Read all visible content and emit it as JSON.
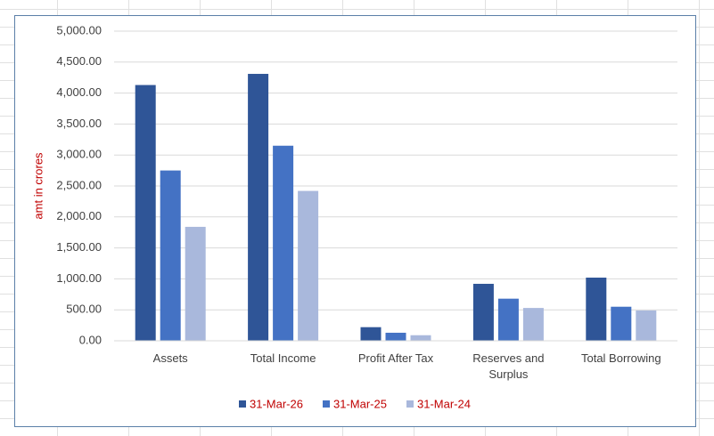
{
  "chart_data": {
    "type": "bar",
    "y_label": "amt in crores",
    "categories": [
      "Assets",
      "Total Income",
      "Profit After Tax",
      "Reserves and Surplus",
      "Total Borrowing"
    ],
    "series": [
      {
        "name": "31-Mar-26",
        "color": "#2f5597",
        "values": [
          4130,
          4310,
          220,
          920,
          1020
        ]
      },
      {
        "name": "31-Mar-25",
        "color": "#4472c4",
        "values": [
          2750,
          3150,
          130,
          680,
          550
        ]
      },
      {
        "name": "31-Mar-24",
        "color": "#a9b8dc",
        "values": [
          1840,
          2420,
          90,
          530,
          490
        ]
      }
    ],
    "ylim": [
      0,
      5000
    ],
    "yticks": [
      {
        "value": 0,
        "label": "0.00"
      },
      {
        "value": 500,
        "label": "500.00"
      },
      {
        "value": 1000,
        "label": "1,000.00"
      },
      {
        "value": 1500,
        "label": "1,500.00"
      },
      {
        "value": 2000,
        "label": "2,000.00"
      },
      {
        "value": 2500,
        "label": "2,500.00"
      },
      {
        "value": 3000,
        "label": "3,000.00"
      },
      {
        "value": 3500,
        "label": "3,500.00"
      },
      {
        "value": 4000,
        "label": "4,000.00"
      },
      {
        "value": 4500,
        "label": "4,500.00"
      },
      {
        "value": 5000,
        "label": "5,000.00"
      }
    ],
    "grid": true
  }
}
